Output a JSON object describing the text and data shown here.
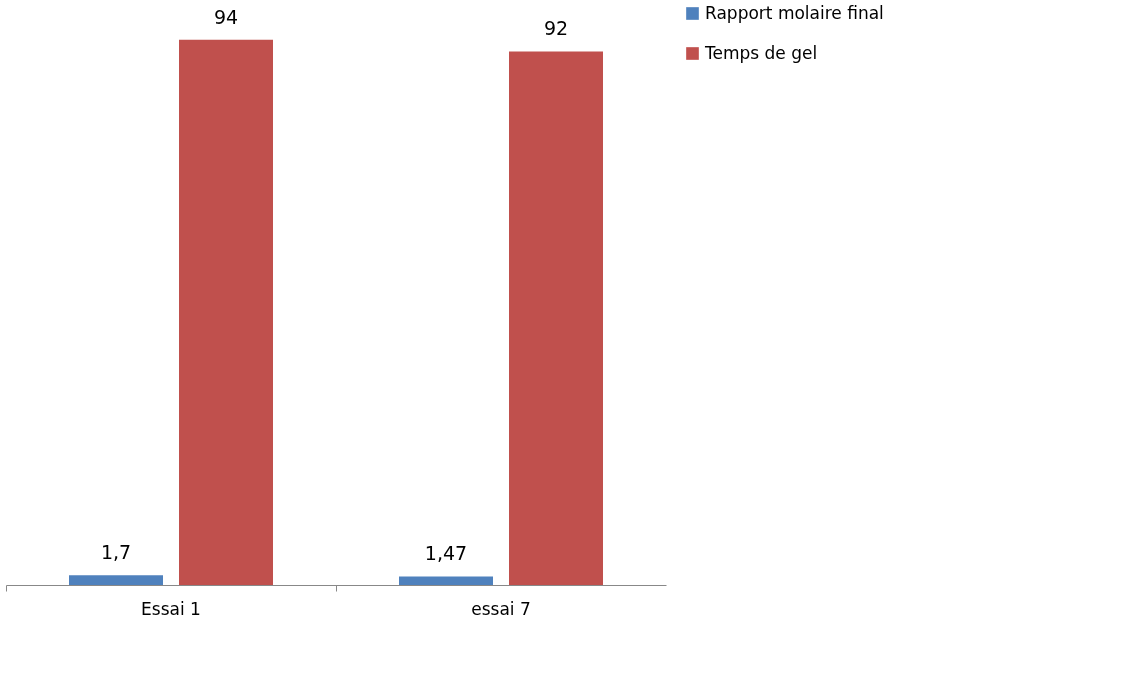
{
  "chart_data": {
    "type": "bar",
    "categories": [
      "Essai 1",
      "essai 7"
    ],
    "series": [
      {
        "name": "Rapport molaire final",
        "color": "#4f81bd",
        "values": [
          1.7,
          1.47
        ],
        "value_labels": [
          "1,7",
          "1,47"
        ]
      },
      {
        "name": "Temps de gel",
        "color": "#c0504d",
        "values": [
          94,
          92
        ],
        "value_labels": [
          "94",
          "92"
        ]
      }
    ],
    "legend": "right",
    "grid": false
  }
}
